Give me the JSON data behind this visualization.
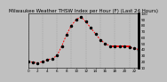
{
  "title": "Milwaukee Weather THSW Index per Hour (F) (Last 24 Hours)",
  "background_color": "#c0c0c0",
  "plot_bg_color": "#c0c0c0",
  "line_color": "#ff0000",
  "dot_color": "#000000",
  "grid_color": "#888888",
  "text_color": "#000000",
  "hours": [
    0,
    1,
    2,
    3,
    4,
    5,
    6,
    7,
    8,
    9,
    10,
    11,
    12,
    13,
    14,
    15,
    16,
    17,
    18,
    19,
    20,
    21,
    22,
    23
  ],
  "values": [
    20,
    19,
    18,
    20,
    23,
    25,
    30,
    46,
    65,
    80,
    90,
    94,
    86,
    76,
    66,
    56,
    50,
    46,
    46,
    46,
    46,
    44,
    42,
    40
  ],
  "ylim": [
    10,
    100
  ],
  "xlim": [
    0,
    23
  ],
  "flat_start": 17,
  "flat_end": 21,
  "flat_value": 46,
  "yticks": [
    10,
    20,
    30,
    40,
    50,
    60,
    70,
    80,
    90,
    100
  ],
  "xticks": [
    0,
    2,
    4,
    6,
    8,
    10,
    12,
    14,
    16,
    18,
    20,
    22
  ],
  "grid_x_positions": [
    0,
    3,
    6,
    9,
    12,
    15,
    18,
    21
  ],
  "title_fontsize": 4,
  "tick_fontsize": 3,
  "line_width": 0.7,
  "marker_size": 1.5
}
